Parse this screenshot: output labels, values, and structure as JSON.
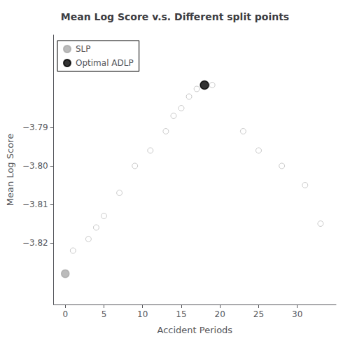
{
  "chart_data": {
    "type": "scatter",
    "title": "Mean Log Score v.s. Different split points",
    "xlabel": "Accident Periods",
    "ylabel": "Mean Log Score",
    "xlim": [
      -1.5,
      35
    ],
    "ylim": [
      -3.836,
      -3.766
    ],
    "xticks": [
      0,
      5,
      10,
      15,
      20,
      25,
      30
    ],
    "yticks": [
      {
        "value": -3.82,
        "label": "−3.82"
      },
      {
        "value": -3.81,
        "label": "−3.81"
      },
      {
        "value": -3.8,
        "label": "−3.80"
      },
      {
        "value": -3.79,
        "label": "−3.79"
      }
    ],
    "grid": false,
    "legend": "upper left",
    "series": [
      {
        "color": "#bbbbbb",
        "marker": "open circle",
        "x": [
          1,
          3,
          4,
          5,
          7,
          9,
          11,
          13,
          14,
          15,
          16,
          17,
          19,
          23,
          25,
          28,
          31,
          33
        ],
        "values": [
          -3.822,
          -3.819,
          -3.816,
          -3.813,
          -3.807,
          -3.8,
          -3.796,
          -3.791,
          -3.787,
          -3.785,
          -3.782,
          -3.78,
          -3.779,
          -3.791,
          -3.796,
          -3.8,
          -3.805,
          -3.815
        ]
      },
      {
        "name": "SLP",
        "color": "#aaaaaa",
        "marker": "circle",
        "x": [
          0
        ],
        "values": [
          -3.828
        ]
      },
      {
        "name": "Optimal ADLP",
        "color": "#000000",
        "marker": "circle",
        "x": [
          18
        ],
        "values": [
          -3.779
        ]
      }
    ]
  }
}
